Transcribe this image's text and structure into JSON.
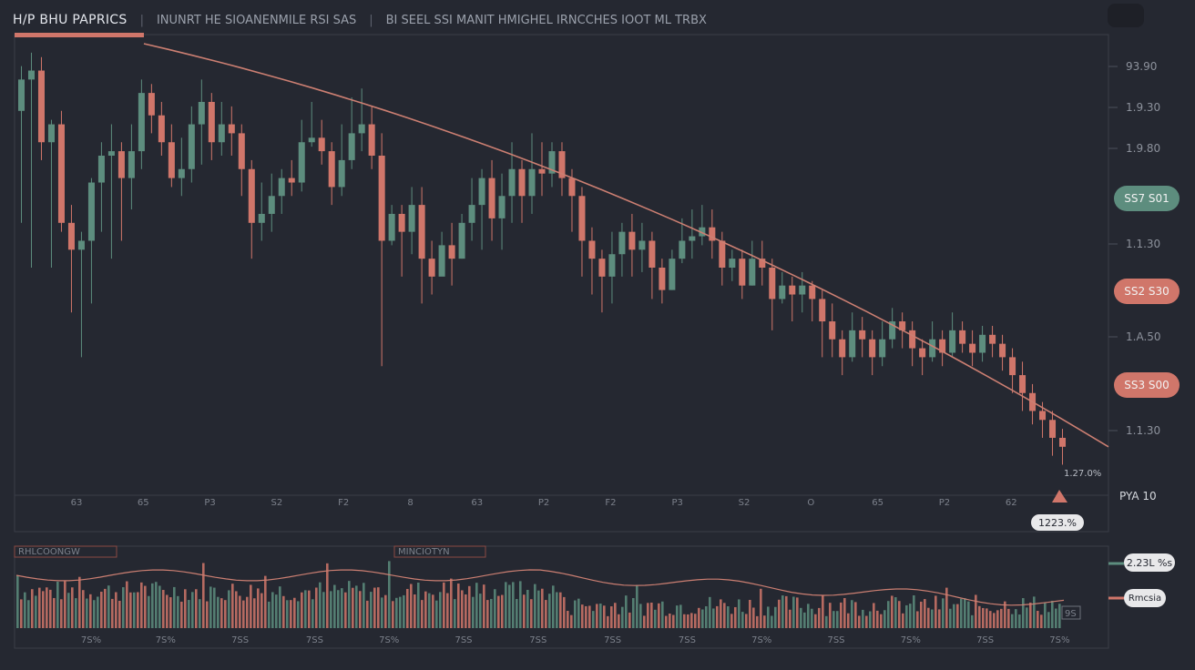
{
  "header": {
    "title": "H/P BHU  PAPRICS",
    "sep": "|",
    "text1": "INUNRT HE SIOANENMILE RSI SAS",
    "text2": "BI SEEL SSI  MANIT HMIGHEL IRNCCHES IOOT ML TRBX"
  },
  "colors": {
    "up": "#5d8d7e",
    "down": "#d0766a",
    "trend": "#cc7f72",
    "background": "#252831"
  },
  "badges": {
    "b1": "SS7 S01",
    "b2": "SS2 S30",
    "b3": "SS3 S00",
    "pill_price": "1223.%",
    "pct_label": "1.27.0%",
    "right_label": "PYA 10"
  },
  "lower": {
    "label1": "RHLCOONGW",
    "label2": "MINCIOTYN",
    "pill1": "2.23L %s",
    "pill2": "Rmcsia",
    "ind_label": "9S"
  },
  "chart_data": {
    "type": "candlestick",
    "title": "H/P BHU  PAPRICS",
    "y_ticks": [
      "93.90",
      "1.9.30",
      "1.9.80",
      "1.1.30",
      "1.A.50",
      "1.1.30"
    ],
    "x_ticks": [
      "63",
      "65",
      "P3",
      "S2",
      "F2",
      "8",
      "63",
      "P2",
      "F2",
      "P3",
      "S2",
      "O",
      "65",
      "P2",
      "62"
    ],
    "trend_line": {
      "start": 100,
      "end": 10
    },
    "candles": [
      [
        85,
        92,
        95,
        60
      ],
      [
        92,
        94,
        98,
        50
      ],
      [
        94,
        78,
        97,
        74
      ],
      [
        78,
        82,
        83,
        50
      ],
      [
        82,
        60,
        85,
        58
      ],
      [
        60,
        54,
        64,
        40
      ],
      [
        54,
        56,
        58,
        30
      ],
      [
        56,
        69,
        70,
        42
      ],
      [
        69,
        75,
        78,
        58
      ],
      [
        75,
        76,
        82,
        52
      ],
      [
        76,
        70,
        78,
        56
      ],
      [
        70,
        76,
        82,
        63
      ],
      [
        76,
        89,
        92,
        72
      ],
      [
        89,
        84,
        91,
        80
      ],
      [
        84,
        78,
        87,
        75
      ],
      [
        78,
        70,
        82,
        68
      ],
      [
        70,
        72,
        79,
        66
      ],
      [
        72,
        82,
        86,
        69
      ],
      [
        82,
        87,
        92,
        73
      ],
      [
        87,
        78,
        89,
        74
      ],
      [
        78,
        82,
        87,
        75
      ],
      [
        82,
        80,
        86,
        75
      ],
      [
        80,
        72,
        82,
        66
      ],
      [
        72,
        60,
        74,
        52
      ],
      [
        60,
        62,
        69,
        56
      ],
      [
        62,
        66,
        71,
        58
      ],
      [
        66,
        70,
        72,
        62
      ],
      [
        70,
        69,
        74,
        66
      ],
      [
        69,
        78,
        83,
        67
      ],
      [
        78,
        79,
        87,
        77
      ],
      [
        79,
        76,
        83,
        73
      ],
      [
        76,
        68,
        78,
        64
      ],
      [
        68,
        74,
        82,
        66
      ],
      [
        74,
        80,
        88,
        72
      ],
      [
        80,
        82,
        90,
        76
      ],
      [
        82,
        75,
        86,
        72
      ],
      [
        75,
        56,
        80,
        28
      ],
      [
        56,
        62,
        64,
        55
      ],
      [
        62,
        58,
        64,
        48
      ],
      [
        58,
        64,
        68,
        53
      ],
      [
        64,
        52,
        68,
        42
      ],
      [
        52,
        48,
        56,
        44
      ],
      [
        48,
        55,
        58,
        50
      ],
      [
        55,
        52,
        60,
        46
      ],
      [
        52,
        60,
        62,
        52
      ],
      [
        60,
        64,
        70,
        56
      ],
      [
        64,
        70,
        72,
        54
      ],
      [
        70,
        61,
        74,
        56
      ],
      [
        61,
        66,
        71,
        54
      ],
      [
        66,
        72,
        78,
        60
      ],
      [
        72,
        66,
        74,
        60
      ],
      [
        66,
        72,
        80,
        62
      ],
      [
        72,
        71,
        78,
        66
      ],
      [
        71,
        76,
        78,
        68
      ],
      [
        76,
        70,
        78,
        66
      ],
      [
        70,
        66,
        72,
        58
      ],
      [
        66,
        56,
        68,
        48
      ],
      [
        56,
        52,
        59,
        44
      ],
      [
        52,
        48,
        54,
        40
      ],
      [
        48,
        53,
        58,
        42
      ],
      [
        53,
        58,
        60,
        48
      ],
      [
        58,
        54,
        62,
        48
      ],
      [
        54,
        56,
        60,
        49
      ],
      [
        56,
        50,
        58,
        43
      ],
      [
        50,
        45,
        52,
        42
      ],
      [
        45,
        52,
        54,
        45
      ],
      [
        52,
        56,
        61,
        51
      ],
      [
        56,
        57,
        63,
        52
      ],
      [
        57,
        59,
        64,
        55
      ],
      [
        59,
        56,
        63,
        52
      ],
      [
        56,
        50,
        58,
        46
      ],
      [
        50,
        52,
        54,
        47
      ],
      [
        52,
        46,
        54,
        43
      ],
      [
        46,
        52,
        56,
        46
      ],
      [
        52,
        50,
        56,
        46
      ],
      [
        50,
        43,
        52,
        36
      ],
      [
        43,
        46,
        49,
        42
      ],
      [
        46,
        44,
        48,
        38
      ],
      [
        44,
        46,
        49,
        40
      ],
      [
        46,
        43,
        47,
        38
      ],
      [
        43,
        38,
        45,
        30
      ],
      [
        38,
        34,
        42,
        30
      ],
      [
        34,
        30,
        36,
        26
      ],
      [
        30,
        36,
        40,
        29
      ],
      [
        36,
        34,
        39,
        30
      ],
      [
        34,
        30,
        36,
        26
      ],
      [
        30,
        34,
        38,
        28
      ],
      [
        34,
        38,
        41,
        32
      ],
      [
        38,
        36,
        40,
        32
      ],
      [
        36,
        32,
        38,
        28
      ],
      [
        32,
        30,
        34,
        26
      ],
      [
        30,
        34,
        38,
        29
      ],
      [
        34,
        31,
        36,
        28
      ],
      [
        31,
        36,
        40,
        30
      ],
      [
        36,
        33,
        38,
        31
      ],
      [
        33,
        31,
        36,
        28
      ],
      [
        31,
        35,
        37,
        29
      ],
      [
        35,
        33,
        37,
        30
      ],
      [
        33,
        30,
        35,
        27
      ],
      [
        30,
        26,
        32,
        22
      ],
      [
        26,
        22,
        29,
        18
      ],
      [
        22,
        18,
        24,
        15
      ],
      [
        18,
        16,
        20,
        12
      ],
      [
        16,
        12,
        18,
        8
      ],
      [
        12,
        10,
        14,
        6
      ]
    ]
  }
}
